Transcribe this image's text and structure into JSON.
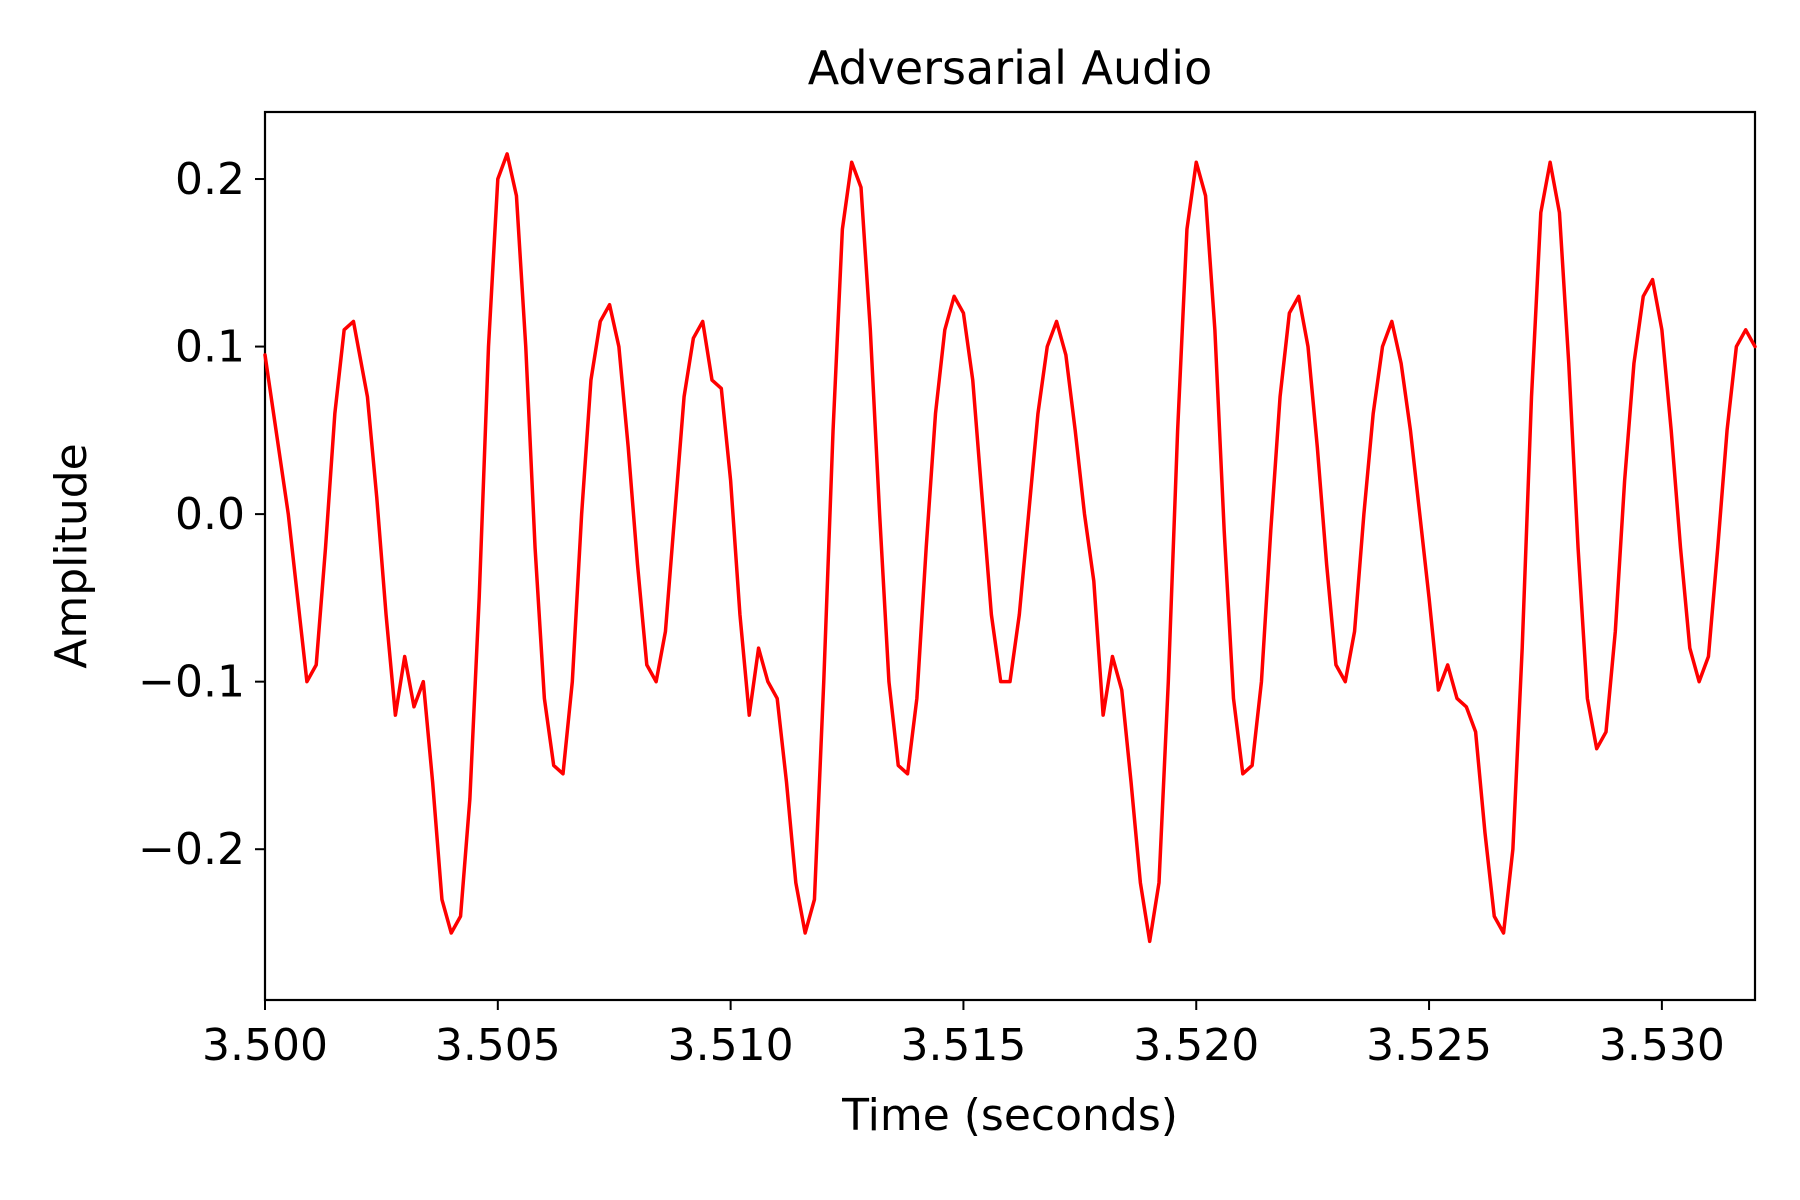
{
  "chart_data": {
    "type": "line",
    "title": "Adversarial Audio",
    "xlabel": "Time (seconds)",
    "ylabel": "Amplitude",
    "xlim": [
      3.5,
      3.532
    ],
    "ylim": [
      -0.29,
      0.24
    ],
    "grid": false,
    "legend": "none",
    "x_ticks": [
      {
        "value": 3.5,
        "label": "3.500"
      },
      {
        "value": 3.505,
        "label": "3.505"
      },
      {
        "value": 3.51,
        "label": "3.510"
      },
      {
        "value": 3.515,
        "label": "3.515"
      },
      {
        "value": 3.52,
        "label": "3.520"
      },
      {
        "value": 3.525,
        "label": "3.525"
      },
      {
        "value": 3.53,
        "label": "3.530"
      }
    ],
    "y_ticks": [
      {
        "value": 0.2,
        "label": "0.2"
      },
      {
        "value": 0.1,
        "label": "0.1"
      },
      {
        "value": 0.0,
        "label": "0.0"
      },
      {
        "value": -0.1,
        "label": "−0.1"
      },
      {
        "value": -0.2,
        "label": "−0.2"
      }
    ],
    "series": [
      {
        "color": "#ff0000",
        "points": [
          [
            3.5,
            0.095
          ],
          [
            3.5005,
            0.0
          ],
          [
            3.5009,
            -0.1
          ],
          [
            3.5011,
            -0.09
          ],
          [
            3.5013,
            -0.02
          ],
          [
            3.5015,
            0.06
          ],
          [
            3.5017,
            0.11
          ],
          [
            3.5019,
            0.115
          ],
          [
            3.502,
            0.1
          ],
          [
            3.5022,
            0.07
          ],
          [
            3.5024,
            0.01
          ],
          [
            3.5026,
            -0.06
          ],
          [
            3.5028,
            -0.12
          ],
          [
            3.503,
            -0.085
          ],
          [
            3.5032,
            -0.115
          ],
          [
            3.5034,
            -0.1
          ],
          [
            3.5036,
            -0.16
          ],
          [
            3.5038,
            -0.23
          ],
          [
            3.504,
            -0.25
          ],
          [
            3.5042,
            -0.24
          ],
          [
            3.5044,
            -0.17
          ],
          [
            3.5046,
            -0.05
          ],
          [
            3.5048,
            0.1
          ],
          [
            3.505,
            0.2
          ],
          [
            3.5052,
            0.215
          ],
          [
            3.5054,
            0.19
          ],
          [
            3.5056,
            0.1
          ],
          [
            3.5058,
            -0.02
          ],
          [
            3.506,
            -0.11
          ],
          [
            3.5062,
            -0.15
          ],
          [
            3.5064,
            -0.155
          ],
          [
            3.5066,
            -0.1
          ],
          [
            3.5068,
            0.0
          ],
          [
            3.507,
            0.08
          ],
          [
            3.5072,
            0.115
          ],
          [
            3.5074,
            0.125
          ],
          [
            3.5076,
            0.1
          ],
          [
            3.5078,
            0.04
          ],
          [
            3.508,
            -0.03
          ],
          [
            3.5082,
            -0.09
          ],
          [
            3.5084,
            -0.1
          ],
          [
            3.5086,
            -0.07
          ],
          [
            3.5088,
            0.0
          ],
          [
            3.509,
            0.07
          ],
          [
            3.5092,
            0.105
          ],
          [
            3.5094,
            0.115
          ],
          [
            3.5096,
            0.08
          ],
          [
            3.5098,
            0.075
          ],
          [
            3.51,
            0.02
          ],
          [
            3.5102,
            -0.06
          ],
          [
            3.5104,
            -0.12
          ],
          [
            3.5106,
            -0.08
          ],
          [
            3.5108,
            -0.1
          ],
          [
            3.511,
            -0.11
          ],
          [
            3.5112,
            -0.16
          ],
          [
            3.5114,
            -0.22
          ],
          [
            3.5116,
            -0.25
          ],
          [
            3.5118,
            -0.23
          ],
          [
            3.512,
            -0.1
          ],
          [
            3.5122,
            0.05
          ],
          [
            3.5124,
            0.17
          ],
          [
            3.5126,
            0.21
          ],
          [
            3.5128,
            0.195
          ],
          [
            3.513,
            0.11
          ],
          [
            3.5132,
            0.0
          ],
          [
            3.5134,
            -0.1
          ],
          [
            3.5136,
            -0.15
          ],
          [
            3.5138,
            -0.155
          ],
          [
            3.514,
            -0.11
          ],
          [
            3.5142,
            -0.02
          ],
          [
            3.5144,
            0.06
          ],
          [
            3.5146,
            0.11
          ],
          [
            3.5148,
            0.13
          ],
          [
            3.515,
            0.12
          ],
          [
            3.5152,
            0.08
          ],
          [
            3.5154,
            0.01
          ],
          [
            3.5156,
            -0.06
          ],
          [
            3.5158,
            -0.1
          ],
          [
            3.516,
            -0.1
          ],
          [
            3.5162,
            -0.06
          ],
          [
            3.5164,
            0.0
          ],
          [
            3.5166,
            0.06
          ],
          [
            3.5168,
            0.1
          ],
          [
            3.517,
            0.115
          ],
          [
            3.5172,
            0.095
          ],
          [
            3.5174,
            0.05
          ],
          [
            3.5176,
            0.0
          ],
          [
            3.5178,
            -0.04
          ],
          [
            3.518,
            -0.12
          ],
          [
            3.5182,
            -0.085
          ],
          [
            3.5184,
            -0.105
          ],
          [
            3.5186,
            -0.16
          ],
          [
            3.5188,
            -0.22
          ],
          [
            3.519,
            -0.255
          ],
          [
            3.5192,
            -0.22
          ],
          [
            3.5194,
            -0.1
          ],
          [
            3.5196,
            0.05
          ],
          [
            3.5198,
            0.17
          ],
          [
            3.52,
            0.21
          ],
          [
            3.5202,
            0.19
          ],
          [
            3.5204,
            0.11
          ],
          [
            3.5206,
            -0.01
          ],
          [
            3.5208,
            -0.11
          ],
          [
            3.521,
            -0.155
          ],
          [
            3.5212,
            -0.15
          ],
          [
            3.5214,
            -0.1
          ],
          [
            3.5216,
            -0.01
          ],
          [
            3.5218,
            0.07
          ],
          [
            3.522,
            0.12
          ],
          [
            3.5222,
            0.13
          ],
          [
            3.5224,
            0.1
          ],
          [
            3.5226,
            0.04
          ],
          [
            3.5228,
            -0.03
          ],
          [
            3.523,
            -0.09
          ],
          [
            3.5232,
            -0.1
          ],
          [
            3.5234,
            -0.07
          ],
          [
            3.5236,
            0.0
          ],
          [
            3.5238,
            0.06
          ],
          [
            3.524,
            0.1
          ],
          [
            3.5242,
            0.115
          ],
          [
            3.5244,
            0.09
          ],
          [
            3.5246,
            0.05
          ],
          [
            3.5248,
            0.0
          ],
          [
            3.525,
            -0.05
          ],
          [
            3.5252,
            -0.105
          ],
          [
            3.5254,
            -0.09
          ],
          [
            3.5256,
            -0.11
          ],
          [
            3.5258,
            -0.115
          ],
          [
            3.526,
            -0.13
          ],
          [
            3.5262,
            -0.19
          ],
          [
            3.5264,
            -0.24
          ],
          [
            3.5266,
            -0.25
          ],
          [
            3.5268,
            -0.2
          ],
          [
            3.527,
            -0.08
          ],
          [
            3.5272,
            0.07
          ],
          [
            3.5274,
            0.18
          ],
          [
            3.5276,
            0.21
          ],
          [
            3.5278,
            0.18
          ],
          [
            3.528,
            0.09
          ],
          [
            3.5282,
            -0.02
          ],
          [
            3.5284,
            -0.11
          ],
          [
            3.5286,
            -0.14
          ],
          [
            3.5288,
            -0.13
          ],
          [
            3.529,
            -0.07
          ],
          [
            3.5292,
            0.02
          ],
          [
            3.5294,
            0.09
          ],
          [
            3.5296,
            0.13
          ],
          [
            3.5298,
            0.14
          ],
          [
            3.53,
            0.11
          ],
          [
            3.5302,
            0.05
          ],
          [
            3.5304,
            -0.02
          ],
          [
            3.5306,
            -0.08
          ],
          [
            3.5308,
            -0.1
          ],
          [
            3.531,
            -0.085
          ],
          [
            3.5312,
            -0.02
          ],
          [
            3.5314,
            0.05
          ],
          [
            3.5316,
            0.1
          ],
          [
            3.5318,
            0.11
          ],
          [
            3.532,
            0.1
          ]
        ]
      }
    ]
  }
}
